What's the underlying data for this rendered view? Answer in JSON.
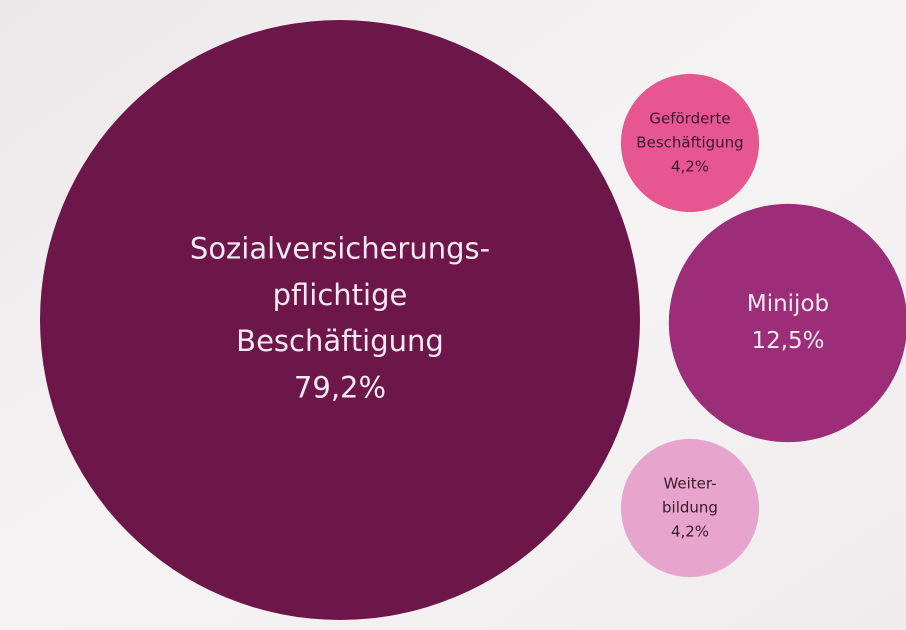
{
  "chart_data": {
    "type": "bubble",
    "categories": [
      [
        "Sozialversicherungs-",
        "pflichtige",
        "Beschäftigung"
      ],
      [
        "Geförderte",
        "Beschäftigung"
      ],
      [
        "Minijob"
      ],
      [
        "Weiter-",
        "bildung"
      ]
    ],
    "values": [
      79.2,
      4.2,
      12.5,
      4.2
    ],
    "value_labels": [
      "79,2%",
      "4,2%",
      "12,5%",
      "4,2%"
    ],
    "colors": [
      "#6d1649",
      "#e6578f",
      "#9b2d79",
      "#e7a4cc"
    ],
    "label_colors": [
      "#f6e9f0",
      "#3b1a2b",
      "#f6e9f0",
      "#3b1a2b"
    ]
  }
}
